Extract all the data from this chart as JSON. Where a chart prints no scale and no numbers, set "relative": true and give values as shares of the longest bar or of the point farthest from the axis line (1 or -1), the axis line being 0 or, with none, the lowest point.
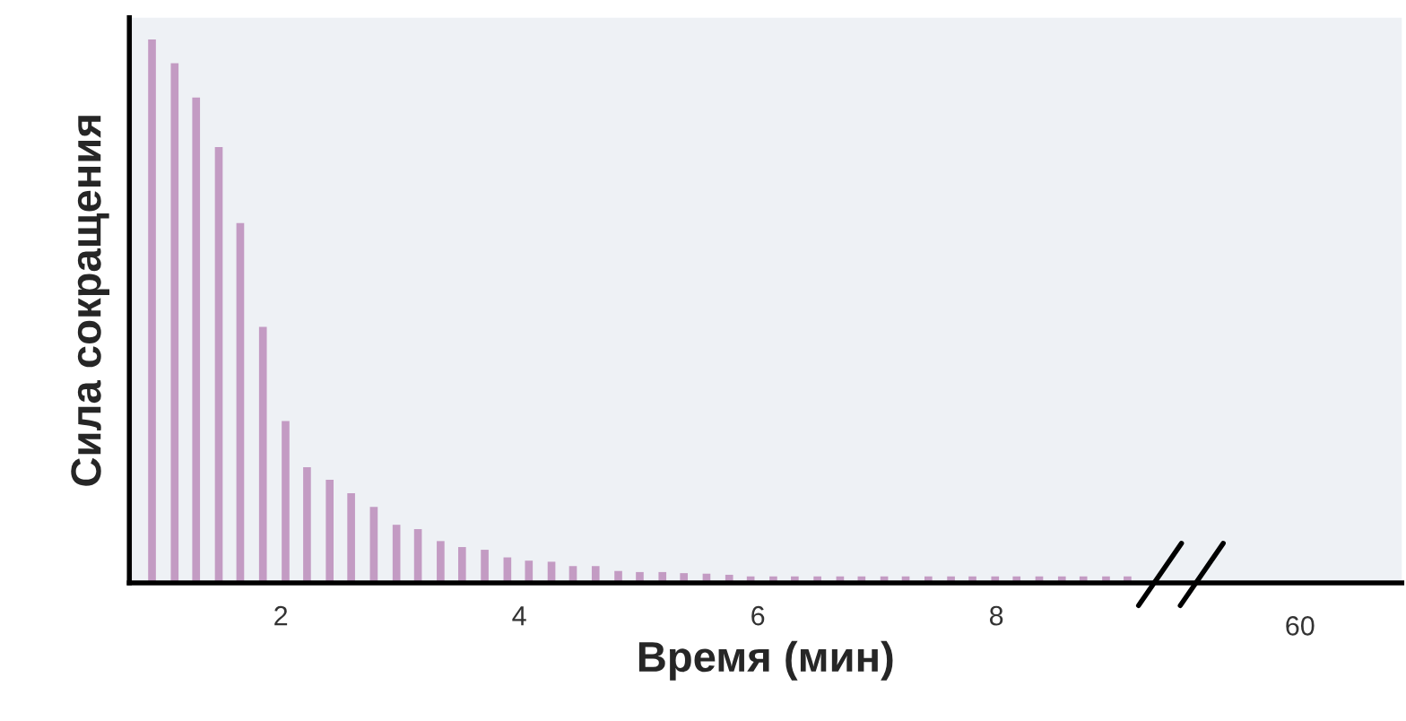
{
  "chart_data": {
    "type": "bar",
    "xlabel": "Время (мин)",
    "ylabel": "Сила сокращения",
    "relative": true,
    "color": "#c39bc3",
    "x": [
      0.92,
      1.11,
      1.29,
      1.48,
      1.66,
      1.85,
      2.04,
      2.22,
      2.41,
      2.59,
      2.78,
      2.97,
      3.15,
      3.34,
      3.52,
      3.71,
      3.9,
      4.08,
      4.27,
      4.45,
      4.64,
      4.83,
      5.01,
      5.2,
      5.38,
      5.57,
      5.76,
      5.94,
      6.13,
      6.31,
      6.5,
      6.69,
      6.87,
      7.06,
      7.24,
      7.43,
      7.62,
      7.8,
      7.99,
      8.17,
      8.36,
      8.55,
      8.73,
      8.92,
      9.1
    ],
    "values": [
      1,
      0.956,
      0.893,
      0.802,
      0.662,
      0.471,
      0.298,
      0.213,
      0.19,
      0.165,
      0.14,
      0.107,
      0.099,
      0.077,
      0.066,
      0.061,
      0.047,
      0.041,
      0.039,
      0.031,
      0.031,
      0.022,
      0.02,
      0.02,
      0.018,
      0.017,
      0.015,
      0.012,
      0.012,
      0.012,
      0.012,
      0.012,
      0.012,
      0.012,
      0.012,
      0.012,
      0.012,
      0.012,
      0.012,
      0.012,
      0.012,
      0.012,
      0.012,
      0.012,
      0.012
    ],
    "xlim": [
      0.73,
      11.4
    ],
    "xticks": [
      2,
      4,
      6,
      8
    ],
    "annotations": [
      "60"
    ],
    "grid": false
  }
}
